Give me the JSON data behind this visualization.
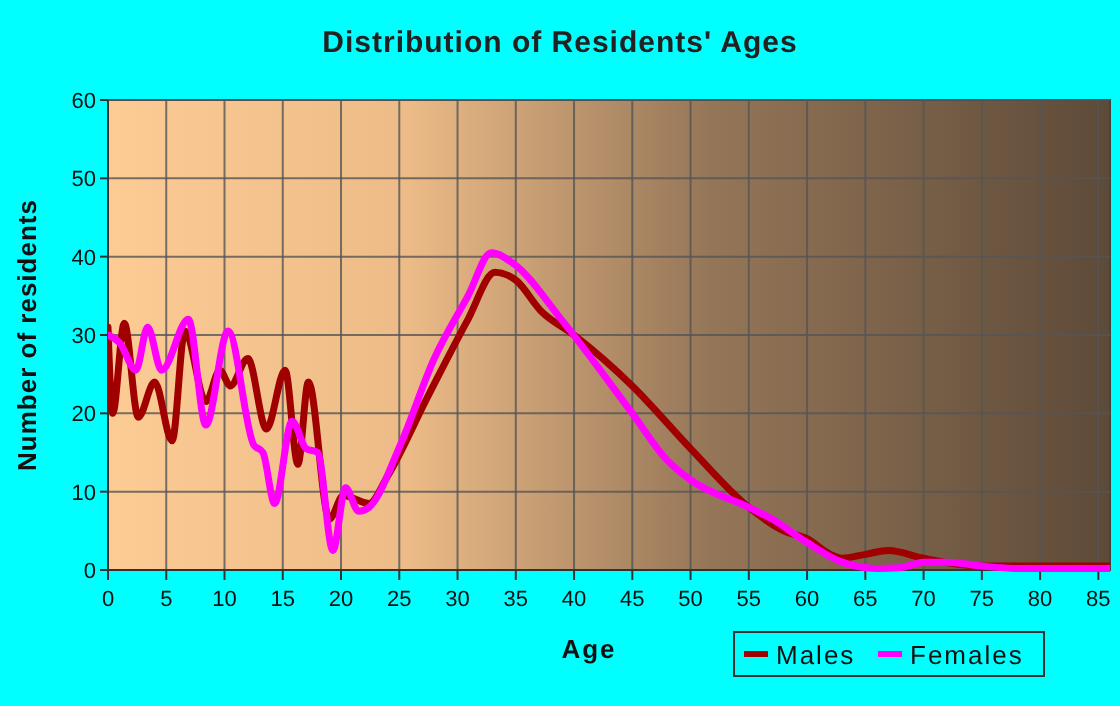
{
  "chart_data": {
    "type": "line",
    "title": "Distribution of Residents' Ages",
    "xlabel": "Age",
    "ylabel": "Number of residents",
    "xlim": [
      0,
      86
    ],
    "ylim": [
      0,
      60
    ],
    "xticks": [
      0,
      5,
      10,
      15,
      20,
      25,
      30,
      35,
      40,
      45,
      50,
      55,
      60,
      65,
      70,
      75,
      80,
      85
    ],
    "yticks": [
      0,
      10,
      20,
      30,
      40,
      50,
      60
    ],
    "grid": true,
    "legend": "bottom right",
    "line_style": "solid",
    "marker": "none",
    "series": [
      {
        "name": "Males",
        "color": "#a00000",
        "x": [
          0,
          0.4,
          1.4,
          2.6,
          4,
          5.5,
          6.6,
          8.4,
          9.6,
          10.5,
          12,
          13.6,
          15.2,
          16.3,
          17.2,
          19,
          20.2,
          22.4,
          24,
          27.4,
          30.9,
          33.2,
          35,
          37.2,
          40,
          45,
          50,
          55,
          58,
          60,
          62,
          63,
          65,
          67,
          70,
          75,
          78,
          86
        ],
        "values": [
          31,
          20,
          31.5,
          19.5,
          24,
          16.5,
          30.5,
          21.5,
          25.5,
          23.5,
          27,
          18,
          25.5,
          13.5,
          24,
          6.5,
          9.5,
          8.5,
          12,
          22,
          32,
          38,
          37,
          33,
          30,
          23.5,
          15.5,
          8,
          5,
          4,
          2,
          1.5,
          2,
          2.5,
          1.5,
          0.5,
          0.5,
          0.5
        ]
      },
      {
        "name": "Females",
        "color": "#ff00ff",
        "x": [
          0,
          1,
          2.4,
          3.4,
          4.6,
          6.9,
          8.4,
          10.3,
          12.5,
          13.3,
          14.3,
          15.8,
          17,
          18,
          19.3,
          20.4,
          21.5,
          22.4,
          25.1,
          28,
          30.9,
          32.9,
          34.9,
          38.9,
          45,
          48,
          50,
          55,
          57,
          60,
          63,
          66,
          68,
          70,
          72,
          75,
          78,
          86
        ],
        "values": [
          30,
          29,
          25.5,
          31,
          25.5,
          32,
          18.5,
          30.5,
          16,
          15,
          8.5,
          19,
          15.5,
          15,
          2.5,
          10.5,
          7.5,
          8,
          16,
          27,
          35,
          40.5,
          39,
          32,
          20,
          14,
          11.5,
          8,
          6.5,
          3.5,
          1,
          0.2,
          0.3,
          1,
          1,
          0.5,
          0.2,
          0.2
        ]
      }
    ]
  }
}
